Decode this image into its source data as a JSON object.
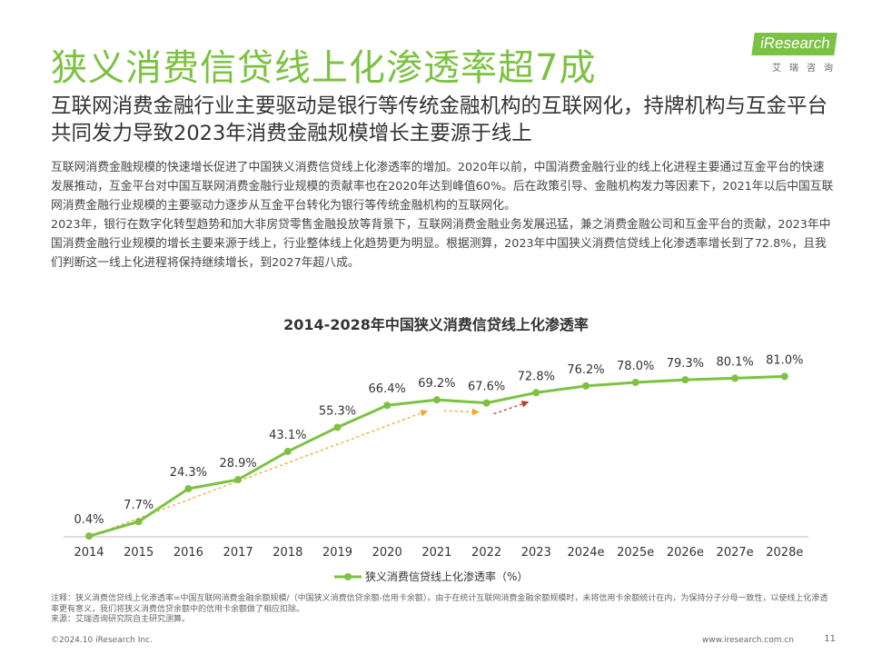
{
  "header": {
    "title": "狭义消费信贷线上化渗透率超7成",
    "subtitle": "互联网消费金融行业主要驱动是银行等传统金融机构的互联网化，持牌机构与互金平台共同发力导致2023年消费金融规模增长主要源于线上"
  },
  "logo": {
    "text": "iResearch",
    "sub": "艾瑞咨询"
  },
  "body": {
    "paragraph1": "互联网消费金融规模的快速增长促进了中国狭义消费信贷线上化渗透率的增加。2020年以前，中国消费金融行业的线上化进程主要通过互金平台的快速发展推动，互金平台对中国互联网消费金融行业规模的贡献率也在2020年达到峰值60%。后在政策引导、金融机构发力等因素下，2021年以后中国互联网消费金融行业规模的主要驱动力逐步从互金平台转化为银行等传统金融机构的互联网化。",
    "paragraph2": "2023年，银行在数字化转型趋势和加大非房贷零售金融投放等背景下，互联网消费金融业务发展迅猛，兼之消费金融公司和互金平台的贡献，2023年中国消费金融行业规模的增长主要来源于线上，行业整体线上化趋势更为明显。根据测算，2023年中国狭义消费信贷线上化渗透率增长到了72.8%，且我们判断这一线上化进程将保持继续增长，到2027年超八成。"
  },
  "chart_data": {
    "type": "line",
    "title": "2014-2028年中国狭义消费信贷线上化渗透率",
    "categories": [
      "2014",
      "2015",
      "2016",
      "2017",
      "2018",
      "2019",
      "2020",
      "2021",
      "2022",
      "2023",
      "2024e",
      "2025e",
      "2026e",
      "2027e",
      "2028e"
    ],
    "series": [
      {
        "name": "狭义消费信贷线上化渗透率（%）",
        "values": [
          0.4,
          7.7,
          24.3,
          28.9,
          43.1,
          55.3,
          66.4,
          69.2,
          67.6,
          72.8,
          76.2,
          78.0,
          79.3,
          80.1,
          81.0
        ],
        "labels": [
          "0.4%",
          "7.7%",
          "24.3%",
          "28.9%",
          "43.1%",
          "55.3%",
          "66.4%",
          "69.2%",
          "67.6%",
          "72.8%",
          "76.2%",
          "78.0%",
          "79.3%",
          "80.1%",
          "81.0%"
        ],
        "color": "#7cc242"
      }
    ],
    "trend_arrows": [
      {
        "from": "2014",
        "to": "2021",
        "color": "#f5a623",
        "style": "dashed"
      },
      {
        "from": "2021",
        "to": "2022",
        "color": "#f5a623",
        "style": "dashed"
      },
      {
        "from": "2022",
        "to": "2023",
        "color": "#c0392b",
        "style": "dashed"
      }
    ],
    "ylim": [
      0,
      100
    ],
    "grid": false,
    "legend_position": "bottom"
  },
  "notes": {
    "note": "注释：狭义消费信贷线上化渗透率=中国互联网消费金融余额规模/（中国狭义消费信贷余额-信用卡余额）。由于在统计互联网消费金融余额规模时，未将信用卡余额统计在内，为保持分子分母一致性，以使线上化渗透率更有意义，我们将狭义消费信贷余额中的信用卡余额做了相应扣除。",
    "source": "来源：艾瑞咨询研究院自主研究测算。"
  },
  "footer": {
    "copyright": "©2024.10 iResearch Inc.",
    "url": "www.iresearch.com.cn",
    "page": "11"
  },
  "colors": {
    "accent": "#7cc242",
    "arrow_orange": "#f5a623",
    "arrow_red": "#c0392b"
  }
}
